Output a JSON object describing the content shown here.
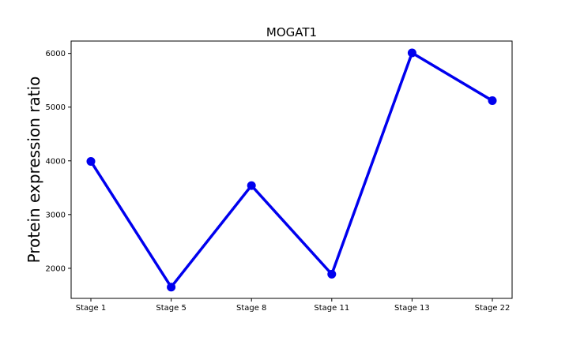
{
  "chart_data": {
    "type": "line",
    "title": "MOGAT1",
    "xlabel": "",
    "ylabel": "Protein expression ratio",
    "categories": [
      "Stage 1",
      "Stage 5",
      "Stage 8",
      "Stage 11",
      "Stage 13",
      "Stage 22"
    ],
    "series": [
      {
        "values": [
          3990,
          1650,
          3540,
          1890,
          6010,
          5120
        ]
      }
    ],
    "ylim": [
      1440,
      6230
    ],
    "yticks": [
      2000,
      3000,
      4000,
      5000,
      6000
    ],
    "grid": false,
    "line_color": "#0000ee"
  }
}
